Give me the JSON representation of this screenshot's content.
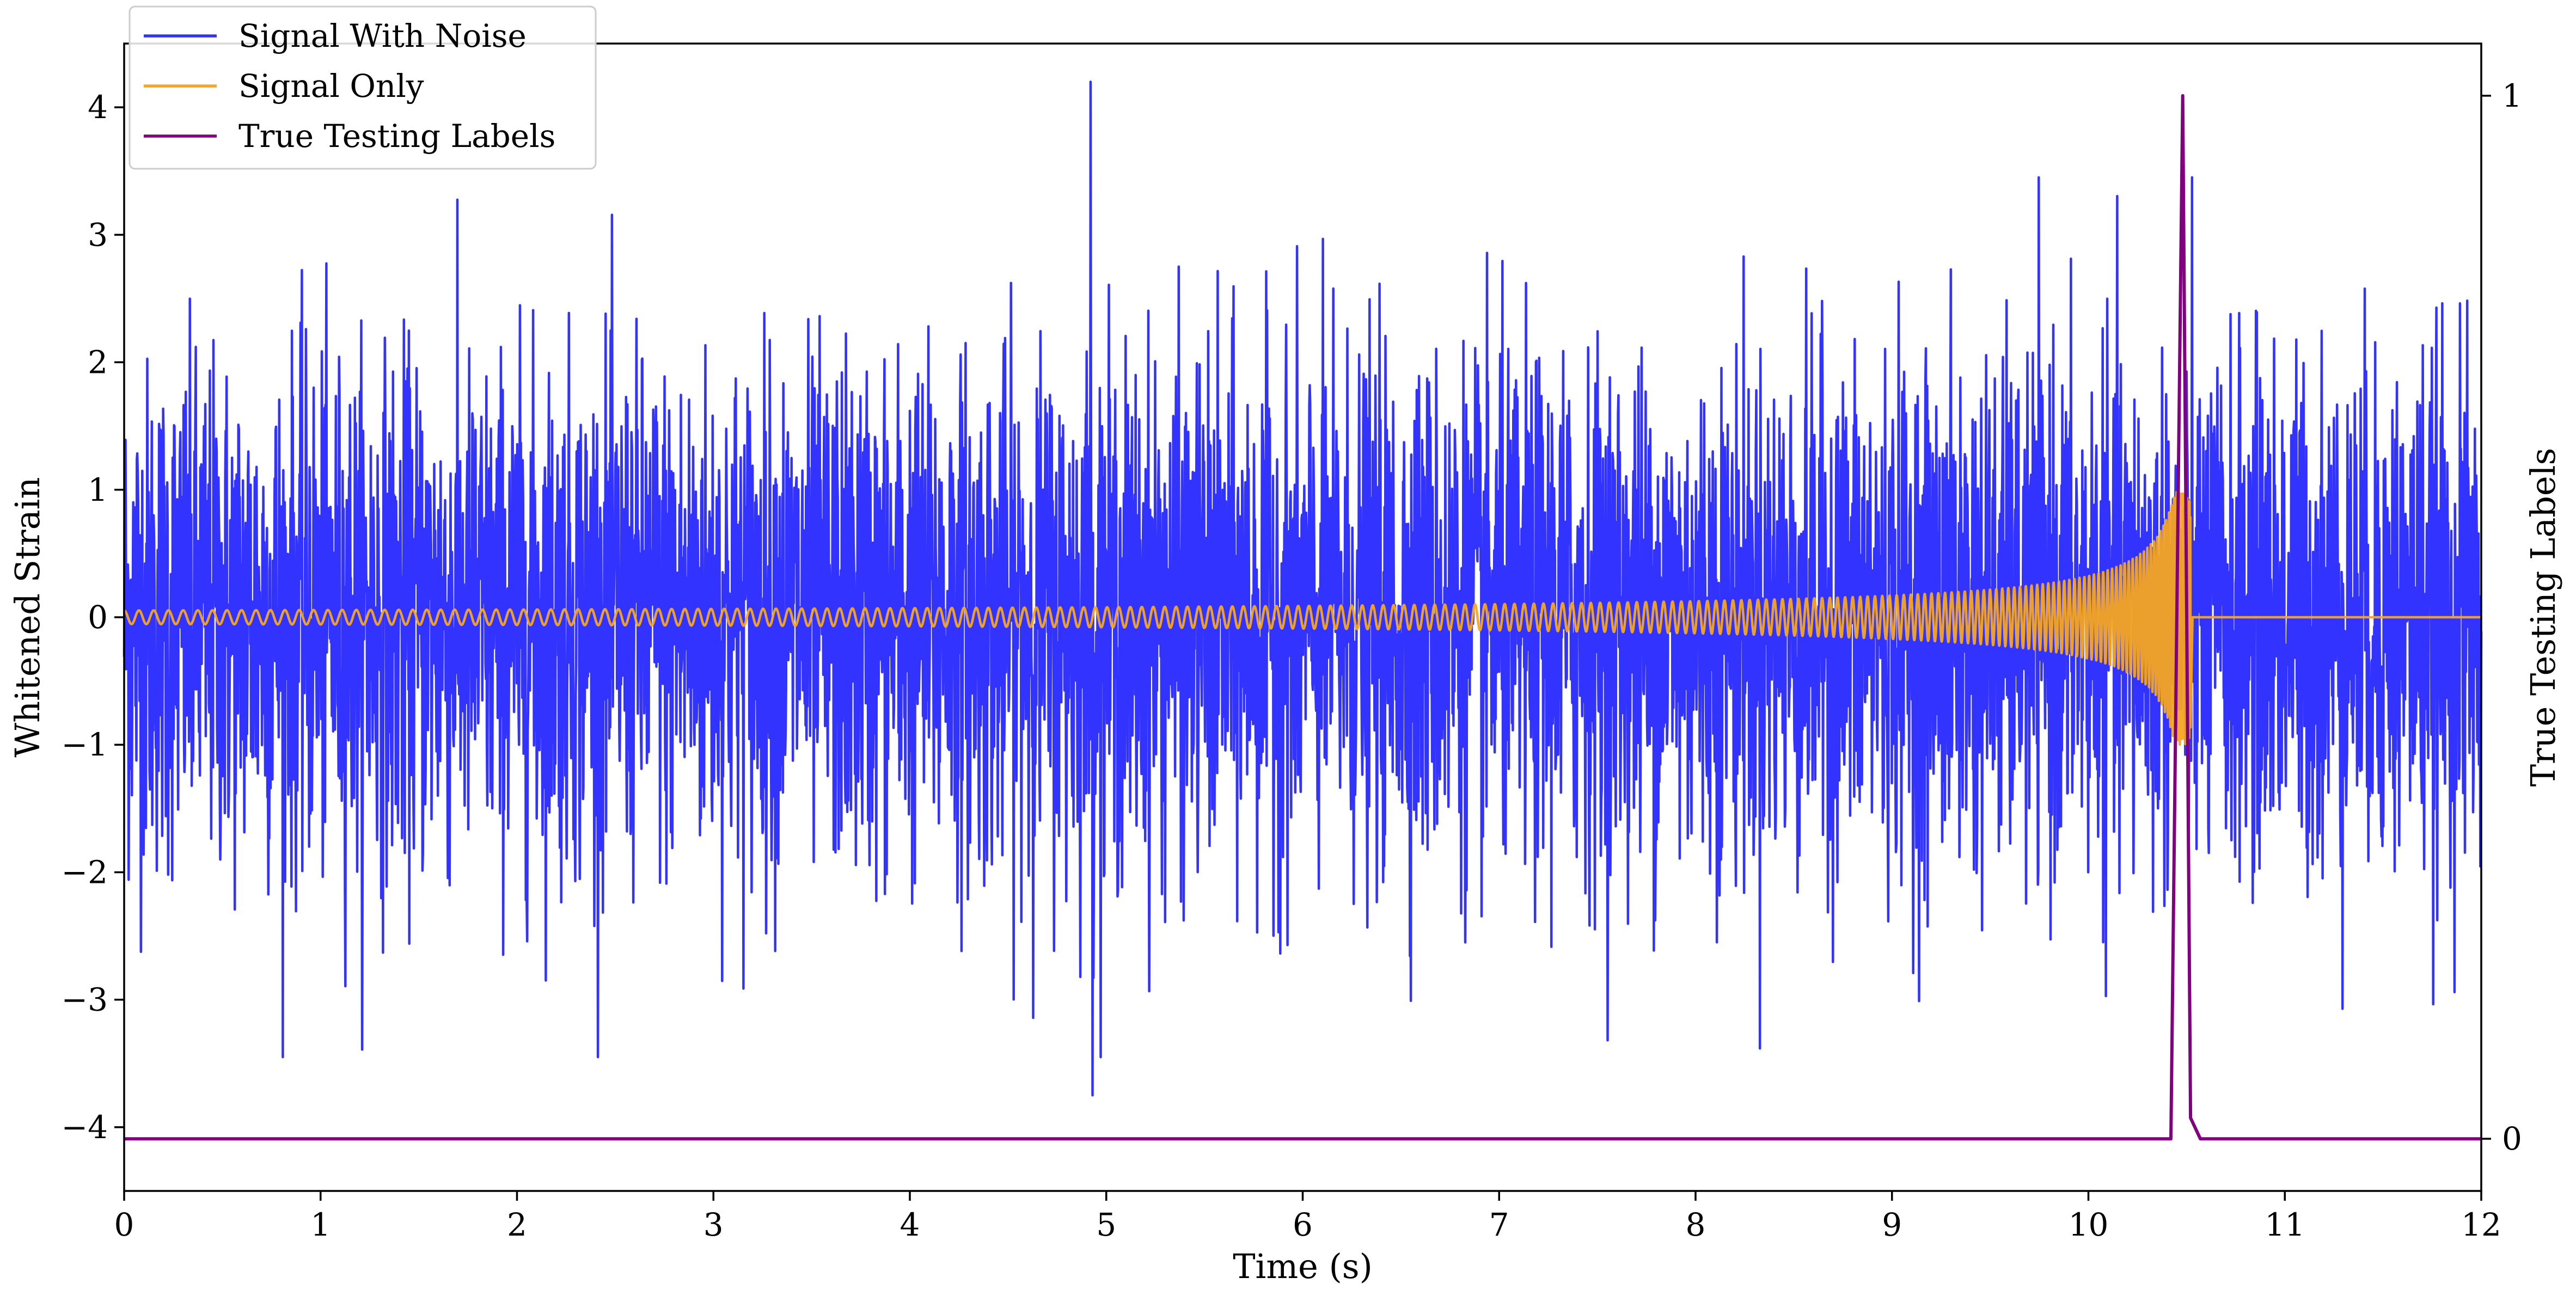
{
  "chart_data": {
    "type": "line",
    "xlabel": "Time (s)",
    "ylabel_left": "Whitened Strain",
    "ylabel_right": "True Testing Labels",
    "xlim": [
      0,
      12
    ],
    "ylim_left": [
      -4.5,
      4.5
    ],
    "ylim_right": [
      -0.05,
      1.05
    ],
    "x_ticks": [
      0,
      1,
      2,
      3,
      4,
      5,
      6,
      7,
      8,
      9,
      10,
      11,
      12
    ],
    "x_tick_labels": [
      "0",
      "1",
      "2",
      "3",
      "4",
      "5",
      "6",
      "7",
      "8",
      "9",
      "10",
      "11",
      "12"
    ],
    "y_left_ticks": [
      -4,
      -3,
      -2,
      -1,
      0,
      1,
      2,
      3,
      4
    ],
    "y_left_tick_labels": [
      "−4",
      "−3",
      "−2",
      "−1",
      "0",
      "1",
      "2",
      "3",
      "4"
    ],
    "y_right_ticks": [
      0,
      1
    ],
    "y_right_tick_labels": [
      "0",
      "1"
    ],
    "grid": false,
    "legend_position": "top-left",
    "series": [
      {
        "name": "Signal With Noise",
        "axis": "left",
        "color": "#3333ff",
        "description_points": {
          "typical_amplitude": 1.0,
          "peak_max": 4.2,
          "peak_max_at": 4.92,
          "peak_min": -3.75,
          "peak_min_at": 4.93
        }
      },
      {
        "name": "Signal Only",
        "axis": "left",
        "color": "#f5a623",
        "chirp": {
          "start": 0.0,
          "end": 10.52,
          "amplitude_start": 0.03,
          "amplitude_at_9": 0.1,
          "amplitude_at_10": 0.35,
          "amplitude_peak": 1.0,
          "after_end_value": 0
        }
      },
      {
        "name": "True Testing Labels",
        "axis": "right",
        "color": "#800080",
        "x": [
          0,
          10.42,
          10.48,
          10.52,
          10.57,
          12
        ],
        "y": [
          0,
          0,
          1,
          0.02,
          0,
          0
        ]
      }
    ]
  }
}
